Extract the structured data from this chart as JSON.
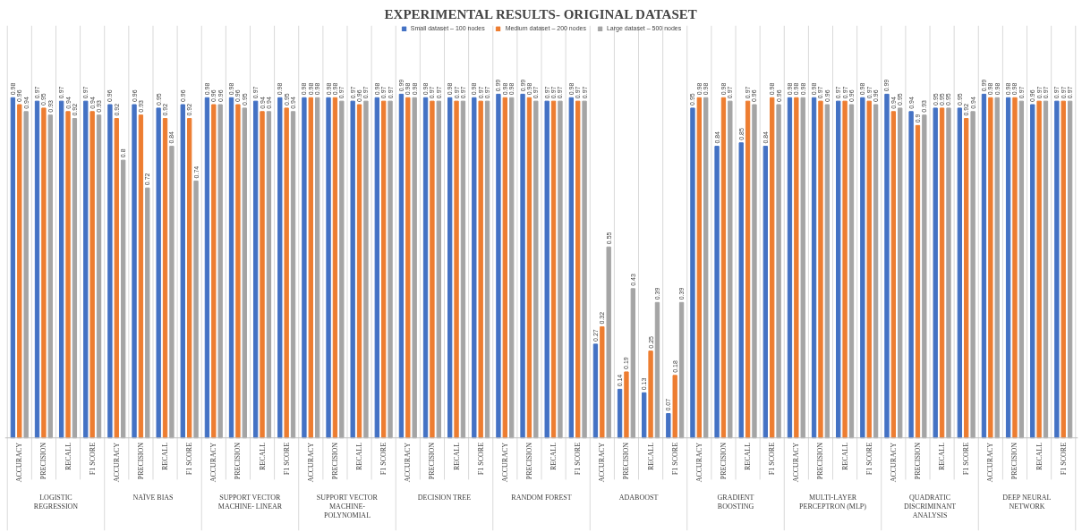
{
  "chart_data": {
    "type": "bar",
    "title": "EXPERIMENTAL RESULTS- ORIGINAL DATASET",
    "categories": [
      "ACCURACY",
      "PRECISION",
      "RECALL",
      "F1 SCORE",
      "ACCURACY",
      "PRECISION",
      "RECALL",
      "F1 SCORE",
      "ACCURACY",
      "PRECISION",
      "RECALL",
      "F1 SCORE",
      "ACCURACY",
      "PRECISION",
      "RECALL",
      "F1 SCORE",
      "ACCURACY",
      "PRECISION",
      "RECALL",
      "F1 SCORE",
      "ACCURACY",
      "PRECISION",
      "RECALL",
      "F1 SCORE",
      "ACCURACY",
      "PRECISION",
      "RECALL",
      "F1 SCORE",
      "ACCURACY",
      "PRECISION",
      "RECALL",
      "F1 SCORE",
      "ACCURACY",
      "PRECISION",
      "RECALL",
      "F1 SCORE",
      "ACCURACY",
      "PRECISION",
      "RECALL",
      "F1 SCORE",
      "ACCURACY",
      "PRECISION",
      "RECALL",
      "F1 SCORE"
    ],
    "annotations": [
      "LOGISTIC REGRESSION",
      "NAÏVE BIAS",
      "SUPPORT VECTOR MACHINE- LINEAR",
      "SUPPORT VECTOR MACHINE- POLYNOMIAL",
      "DECISION TREE",
      "RANDOM FOREST",
      "ADABOOST",
      "GRADIENT BOOSTING",
      "MULTI-LAYER PERCEPTRON (MLP)",
      "QUADRATIC DISCRIMINANT ANALYSIS",
      "DEEP NEURAL NETWORK"
    ],
    "series": [
      {
        "name": "Small dataset – 100 nodes",
        "color": "#4472c4",
        "values": [
          0.98,
          0.97,
          0.97,
          0.97,
          0.96,
          0.96,
          0.95,
          0.96,
          0.98,
          0.98,
          0.97,
          0.98,
          0.98,
          0.98,
          0.97,
          0.98,
          0.99,
          0.98,
          0.98,
          0.98,
          0.99,
          0.99,
          0.97,
          0.98,
          0.27,
          0.14,
          0.13,
          0.07,
          0.95,
          0.84,
          0.85,
          0.84,
          0.98,
          0.98,
          0.97,
          0.98,
          0.99,
          0.94,
          0.95,
          0.95,
          0.99,
          0.98,
          0.96,
          0.97
        ]
      },
      {
        "name": "Medium dataset – 200 nodes",
        "color": "#ed7d31",
        "values": [
          0.96,
          0.95,
          0.94,
          0.94,
          0.92,
          0.93,
          0.92,
          0.92,
          0.96,
          0.96,
          0.94,
          0.95,
          0.98,
          0.98,
          0.96,
          0.97,
          0.98,
          0.97,
          0.97,
          0.97,
          0.98,
          0.98,
          0.97,
          0.97,
          0.32,
          0.19,
          0.25,
          0.18,
          0.98,
          0.98,
          0.97,
          0.98,
          0.98,
          0.97,
          0.97,
          0.97,
          0.94,
          0.9,
          0.95,
          0.92,
          0.98,
          0.98,
          0.97,
          0.97
        ]
      },
      {
        "name": "Large dataset – 500 nodes",
        "color": "#a5a5a5",
        "values": [
          0.94,
          0.93,
          0.92,
          0.93,
          0.8,
          0.72,
          0.84,
          0.74,
          0.96,
          0.95,
          0.94,
          0.94,
          0.98,
          0.97,
          0.97,
          0.97,
          0.98,
          0.97,
          0.97,
          0.97,
          0.98,
          0.97,
          0.97,
          0.97,
          0.55,
          0.43,
          0.39,
          0.39,
          0.98,
          0.97,
          0.96,
          0.96,
          0.98,
          0.96,
          0.96,
          0.96,
          0.95,
          0.93,
          0.95,
          0.94,
          0.98,
          0.97,
          0.97,
          0.97
        ]
      }
    ],
    "data_labels": true,
    "grid": "x",
    "legend": "top"
  }
}
